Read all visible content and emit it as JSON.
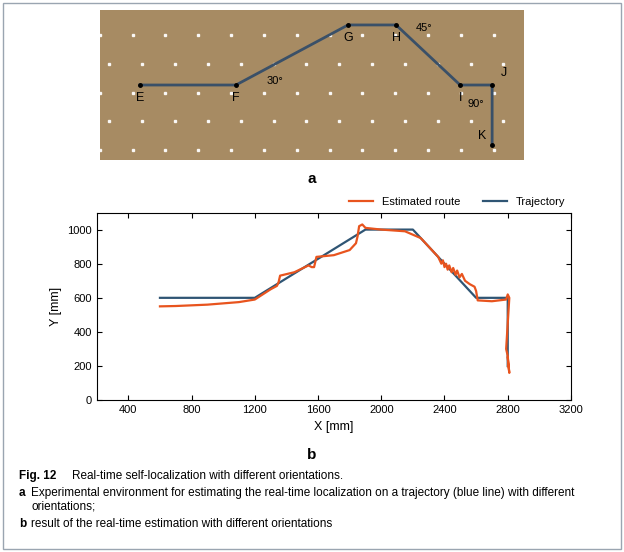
{
  "panel_a": {
    "label": "a",
    "points": [
      "E",
      "F",
      "G",
      "H",
      "I",
      "J",
      "K"
    ],
    "angles": [
      {
        "label": "30°",
        "at": "F"
      },
      {
        "label": "45°",
        "at": "H"
      },
      {
        "label": "90°",
        "at": "J"
      }
    ]
  },
  "panel_b": {
    "label": "b"
  },
  "chart_data": {
    "type": "line",
    "xlabel": "X [mm]",
    "ylabel": "Y [mm]",
    "xlim": [
      200,
      3200
    ],
    "xticks": [
      400,
      800,
      1200,
      1600,
      2000,
      2400,
      2800,
      3200
    ],
    "ylim": [
      0,
      1100
    ],
    "yticks": [
      0,
      200,
      400,
      600,
      800,
      1000
    ],
    "grid": false,
    "legend": "upper right",
    "series": [
      {
        "name": "Estimated route",
        "color": "#e8541e",
        "x": [
          600,
          700,
          900,
          1100,
          1200,
          1250,
          1300,
          1340,
          1350,
          1360,
          1450,
          1540,
          1560,
          1575,
          1590,
          1700,
          1800,
          1840,
          1850,
          1860,
          1880,
          1900,
          2000,
          2150,
          2250,
          2300,
          2340,
          2360,
          2380,
          2390,
          2400,
          2410,
          2420,
          2430,
          2445,
          2455,
          2470,
          2480,
          2495,
          2510,
          2530,
          2560,
          2590,
          2600,
          2610,
          2700,
          2790,
          2800,
          2810,
          2790,
          2800,
          2805,
          2810,
          2800
        ],
        "values": [
          550,
          552,
          560,
          575,
          590,
          620,
          650,
          670,
          690,
          730,
          750,
          790,
          780,
          780,
          840,
          850,
          880,
          920,
          960,
          1020,
          1030,
          1010,
          1000,
          990,
          950,
          900,
          860,
          840,
          800,
          820,
          780,
          800,
          765,
          790,
          750,
          775,
          735,
          760,
          720,
          740,
          700,
          680,
          665,
          640,
          585,
          580,
          590,
          620,
          600,
          300,
          260,
          200,
          160,
          250
        ]
      },
      {
        "name": "Trajectory",
        "color": "#2f5574",
        "x": [
          600,
          1200,
          1900,
          2200,
          2600,
          2800,
          2800
        ],
        "values": [
          600,
          600,
          1000,
          1000,
          600,
          600,
          200
        ]
      }
    ]
  },
  "caption": {
    "label": "Fig. 12",
    "title": "Real-time self-localization with different orientations.",
    "parts": [
      {
        "label": "a",
        "text": "Experimental environment for estimating the real-time localization on a trajectory (blue line) with different orientations;"
      },
      {
        "label": "b",
        "text": "result of the real-time estimation with different orientations"
      }
    ]
  }
}
